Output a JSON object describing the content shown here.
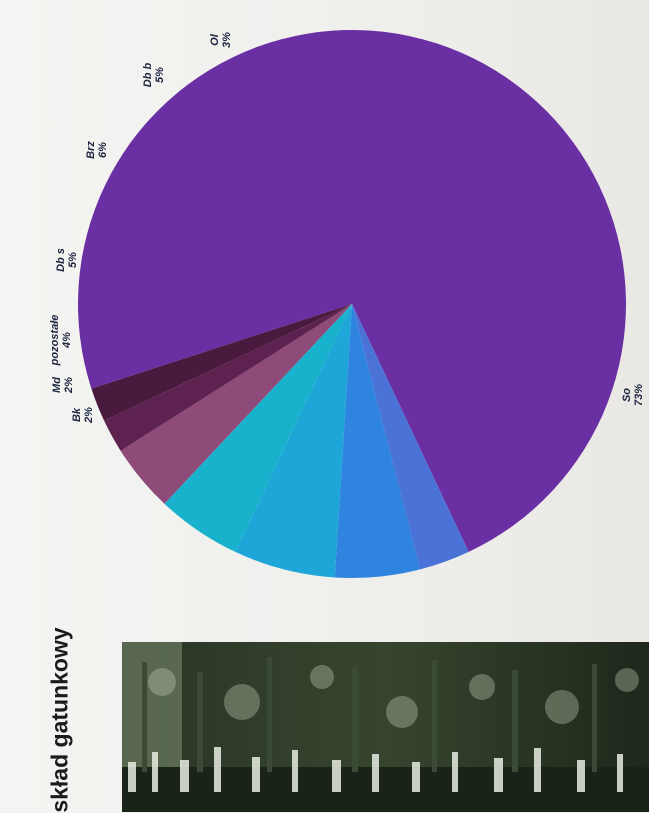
{
  "section": {
    "title": "skład gatunkowy"
  },
  "chart_data": {
    "type": "pie",
    "title": "",
    "slices": [
      {
        "name": "So",
        "value": 73,
        "label": "73%",
        "color": "#6a2fa3"
      },
      {
        "name": "Ol",
        "value": 3,
        "label": "3%",
        "color": "#4b72d6"
      },
      {
        "name": "Db b",
        "value": 5,
        "label": "5%",
        "color": "#2f84e0"
      },
      {
        "name": "Brz",
        "value": 6,
        "label": "6%",
        "color": "#1ea6d8"
      },
      {
        "name": "Db s",
        "value": 5,
        "label": "5%",
        "color": "#19b2cc"
      },
      {
        "name": "pozostałe",
        "value": 4,
        "label": "4%",
        "color": "#8e4a78"
      },
      {
        "name": "Md",
        "value": 2,
        "label": "2%",
        "color": "#5d2250"
      },
      {
        "name": "Bk",
        "value": 2,
        "label": "2%",
        "color": "#4a1a3e"
      }
    ]
  },
  "photo": {
    "icon": "forest-photo"
  }
}
